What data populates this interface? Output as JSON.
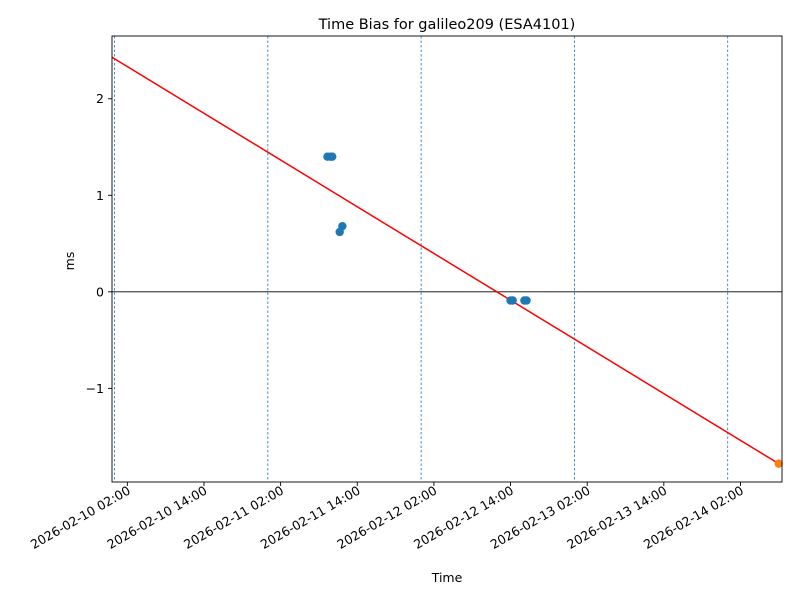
{
  "chart_data": {
    "type": "scatter",
    "title": "Time Bias for galileo209 (ESA4101)",
    "xlabel": "Time",
    "ylabel": "ms",
    "xlim": [
      "2026-02-09T23:36",
      "2026-02-14T08:30"
    ],
    "ylim": [
      -1.97,
      2.65
    ],
    "x_tick_labels": [
      "2026-02-10 02:00",
      "2026-02-10 14:00",
      "2026-02-11 02:00",
      "2026-02-11 14:00",
      "2026-02-12 02:00",
      "2026-02-12 14:00",
      "2026-02-13 02:00",
      "2026-02-13 14:00",
      "2026-02-14 02:00"
    ],
    "x_ticks": [
      "2026-02-10T02:00",
      "2026-02-10T14:00",
      "2026-02-11T02:00",
      "2026-02-11T14:00",
      "2026-02-12T02:00",
      "2026-02-12T14:00",
      "2026-02-13T02:00",
      "2026-02-13T14:00",
      "2026-02-14T02:00"
    ],
    "y_ticks": [
      -1,
      0,
      1,
      2
    ],
    "y_tick_labels": [
      "−1",
      "0",
      "1",
      "2"
    ],
    "vlines": [
      "2026-02-10T00:00",
      "2026-02-11T00:00",
      "2026-02-12T00:00",
      "2026-02-13T00:00",
      "2026-02-14T00:00"
    ],
    "hline": 0,
    "fit_line": {
      "x": [
        "2026-02-09T23:36",
        "2026-02-14T07:59"
      ],
      "y": [
        2.43,
        -1.78
      ],
      "color": "#ff0000"
    },
    "series": [
      {
        "color": "#1f77b4",
        "x": [
          "2026-02-11T09:20",
          "2026-02-11T09:50",
          "2026-02-11T10:05",
          "2026-02-11T11:15",
          "2026-02-11T11:40",
          "2026-02-12T14:00",
          "2026-02-12T14:20",
          "2026-02-12T16:10",
          "2026-02-12T16:30"
        ],
        "y": [
          1.4,
          1.4,
          1.4,
          0.62,
          0.68,
          -0.09,
          -0.09,
          -0.09,
          -0.09
        ]
      },
      {
        "color": "#ff7f0e",
        "x": [
          "2026-02-14T07:59"
        ],
        "y": [
          -1.78
        ]
      }
    ],
    "grid": false,
    "legend": "none"
  }
}
